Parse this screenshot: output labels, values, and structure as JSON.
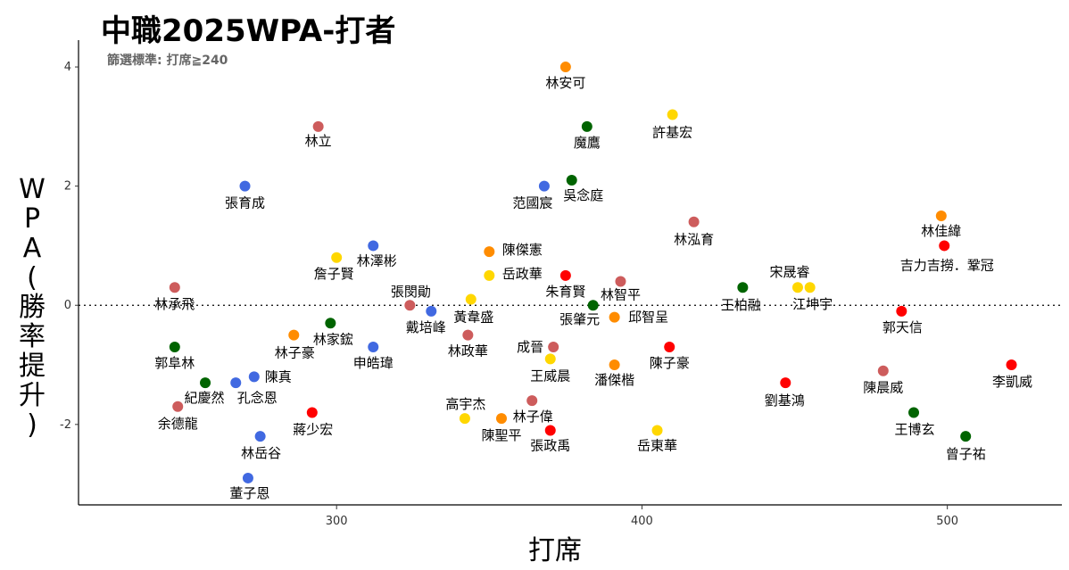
{
  "chart_data": {
    "type": "scatter",
    "title": "中職2025WPA-打者",
    "subtitle": "篩選標準: 打席≧240",
    "xlabel": "打席",
    "ylabel": "WPA(勝率提升)",
    "ylabel_chars": [
      "W",
      "P",
      "A",
      "(",
      "勝",
      "率",
      "提",
      "升",
      ")"
    ],
    "xlim": [
      215.5,
      537.5
    ],
    "ylim": [
      -3.35,
      4.45
    ],
    "xticks": [
      300,
      400,
      500
    ],
    "yticks": [
      4,
      2,
      0,
      -2
    ],
    "reference_line": {
      "y": 0,
      "style": "dotted"
    },
    "grid": false,
    "team_colors": {
      "orange": "#FF8C00",
      "green": "#006400",
      "yellow": "#FFD700",
      "rose": "#CD5C5C",
      "blue": "#4169E1",
      "red": "#FF0000"
    },
    "points": [
      {
        "name": "林安可",
        "x": 375,
        "y": 4.0,
        "color": "orange"
      },
      {
        "name": "魔鷹",
        "x": 382,
        "y": 3.0,
        "color": "green"
      },
      {
        "name": "許基宏",
        "x": 410,
        "y": 3.2,
        "color": "yellow"
      },
      {
        "name": "林立",
        "x": 294,
        "y": 3.0,
        "color": "rose"
      },
      {
        "name": "張育成",
        "x": 270,
        "y": 2.0,
        "color": "blue"
      },
      {
        "name": "范國宸",
        "x": 368,
        "y": 2.0,
        "color": "blue"
      },
      {
        "name": "吳念庭",
        "x": 377,
        "y": 2.1,
        "color": "green"
      },
      {
        "name": "林泓育",
        "x": 417,
        "y": 1.4,
        "color": "rose"
      },
      {
        "name": "林佳緯",
        "x": 498,
        "y": 1.5,
        "color": "orange"
      },
      {
        "name": "吉力吉撈．鞏冠",
        "x": 499,
        "y": 1.0,
        "color": "red"
      },
      {
        "name": "林澤彬",
        "x": 312,
        "y": 1.0,
        "color": "blue"
      },
      {
        "name": "詹子賢",
        "x": 300,
        "y": 0.8,
        "color": "yellow"
      },
      {
        "name": "陳傑憲",
        "x": 350,
        "y": 0.9,
        "color": "orange"
      },
      {
        "name": "岳政華",
        "x": 350,
        "y": 0.5,
        "color": "yellow"
      },
      {
        "name": "朱育賢",
        "x": 375,
        "y": 0.5,
        "color": "red"
      },
      {
        "name": "林智平",
        "x": 393,
        "y": 0.4,
        "color": "rose"
      },
      {
        "name": "宋晟睿",
        "x": 451,
        "y": 0.3,
        "color": "yellow"
      },
      {
        "name": "江坤宇",
        "x": 455,
        "y": 0.3,
        "color": "yellow"
      },
      {
        "name": "王柏融",
        "x": 433,
        "y": 0.3,
        "color": "green"
      },
      {
        "name": "林承飛",
        "x": 247,
        "y": 0.3,
        "color": "rose"
      },
      {
        "name": "張閔勛",
        "x": 324,
        "y": 0.0,
        "color": "rose"
      },
      {
        "name": "黃韋盛",
        "x": 344,
        "y": 0.1,
        "color": "yellow"
      },
      {
        "name": "戴培峰",
        "x": 331,
        "y": -0.1,
        "color": "blue"
      },
      {
        "name": "張肇元",
        "x": 384,
        "y": 0.0,
        "color": "green"
      },
      {
        "name": "邱智呈",
        "x": 391,
        "y": -0.2,
        "color": "orange"
      },
      {
        "name": "郭天信",
        "x": 485,
        "y": -0.1,
        "color": "red"
      },
      {
        "name": "林家鋐",
        "x": 298,
        "y": -0.3,
        "color": "green"
      },
      {
        "name": "林子豪",
        "x": 286,
        "y": -0.5,
        "color": "orange"
      },
      {
        "name": "林政華",
        "x": 343,
        "y": -0.5,
        "color": "rose"
      },
      {
        "name": "郭阜林",
        "x": 247,
        "y": -0.7,
        "color": "green"
      },
      {
        "name": "申皓瑋",
        "x": 312,
        "y": -0.7,
        "color": "blue"
      },
      {
        "name": "成晉",
        "x": 371,
        "y": -0.7,
        "color": "rose"
      },
      {
        "name": "陳子豪",
        "x": 409,
        "y": -0.7,
        "color": "red"
      },
      {
        "name": "王威晨",
        "x": 370,
        "y": -0.9,
        "color": "yellow"
      },
      {
        "name": "潘傑楷",
        "x": 391,
        "y": -1.0,
        "color": "orange"
      },
      {
        "name": "李凱威",
        "x": 521,
        "y": -1.0,
        "color": "red"
      },
      {
        "name": "陳晨威",
        "x": 479,
        "y": -1.1,
        "color": "rose"
      },
      {
        "name": "陳真",
        "x": 273,
        "y": -1.2,
        "color": "blue"
      },
      {
        "name": "孔念恩",
        "x": 267,
        "y": -1.3,
        "color": "blue"
      },
      {
        "name": "紀慶然",
        "x": 257,
        "y": -1.3,
        "color": "green"
      },
      {
        "name": "劉基鴻",
        "x": 447,
        "y": -1.3,
        "color": "red"
      },
      {
        "name": "余德龍",
        "x": 248,
        "y": -1.7,
        "color": "rose"
      },
      {
        "name": "林子偉",
        "x": 364,
        "y": -1.6,
        "color": "rose"
      },
      {
        "name": "蔣少宏",
        "x": 292,
        "y": -1.8,
        "color": "red"
      },
      {
        "name": "王博玄",
        "x": 489,
        "y": -1.8,
        "color": "green"
      },
      {
        "name": "高宇杰",
        "x": 342,
        "y": -1.9,
        "color": "yellow"
      },
      {
        "name": "陳聖平",
        "x": 354,
        "y": -1.9,
        "color": "orange"
      },
      {
        "name": "張政禹",
        "x": 370,
        "y": -2.1,
        "color": "red"
      },
      {
        "name": "岳東華",
        "x": 405,
        "y": -2.1,
        "color": "yellow"
      },
      {
        "name": "林岳谷",
        "x": 275,
        "y": -2.2,
        "color": "blue"
      },
      {
        "name": "曾子祐",
        "x": 506,
        "y": -2.2,
        "color": "green"
      },
      {
        "name": "董子恩",
        "x": 271,
        "y": -2.9,
        "color": "blue"
      }
    ]
  }
}
